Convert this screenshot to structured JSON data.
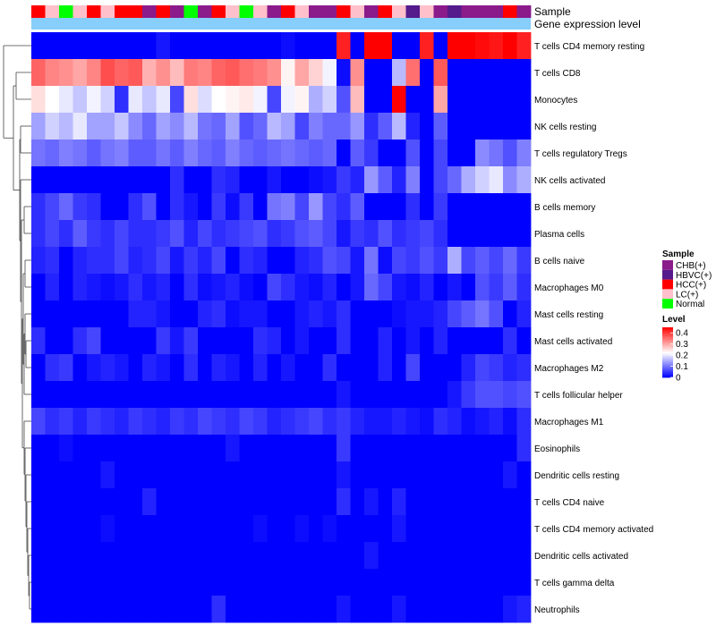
{
  "chart_data": {
    "type": "heatmap",
    "title": "",
    "annotation_labels": [
      "Sample",
      "Gene expression level"
    ],
    "gene_expression_color": "#87cefa",
    "sample_groups": {
      "CHB": "#8b1a8b",
      "HBVC": "#551a8b",
      "HCC": "#ff0000",
      "LC": "#ffc0cb",
      "Normal": "#00ff00"
    },
    "columns": [
      "HCC",
      "LC",
      "Normal",
      "LC",
      "HCC",
      "LC",
      "HCC",
      "HCC",
      "CHB",
      "HCC",
      "CHB",
      "Normal",
      "CHB",
      "HCC",
      "LC",
      "Normal",
      "LC",
      "CHB",
      "HCC",
      "LC",
      "CHB",
      "CHB",
      "HCC",
      "LC",
      "CHB",
      "HCC",
      "LC",
      "HBVC",
      "LC",
      "CHB",
      "HBVC",
      "CHB",
      "CHB",
      "CHB",
      "HCC",
      "CHB"
    ],
    "rows": [
      {
        "name": "T cells CD4 memory resting",
        "values": [
          0,
          0,
          0,
          0,
          0,
          0,
          0,
          0,
          0,
          0.02,
          0,
          0,
          0,
          0,
          0,
          0,
          0,
          0,
          0.01,
          0,
          0,
          0,
          0.42,
          0,
          0.45,
          0.45,
          0,
          0,
          0.42,
          0,
          0.48,
          0.47,
          0.44,
          0.43,
          0.47,
          0.42
        ]
      },
      {
        "name": "T cells CD8",
        "values": [
          0.36,
          0.33,
          0.32,
          0.3,
          0.33,
          0.38,
          0.36,
          0.37,
          0.29,
          0.32,
          0.28,
          0.34,
          0.33,
          0.36,
          0.37,
          0.35,
          0.34,
          0.32,
          0.23,
          0.3,
          0.26,
          0.21,
          0.01,
          0.32,
          0,
          0,
          0.16,
          0.35,
          0,
          0.37,
          0,
          0,
          0,
          0,
          0,
          0
        ]
      },
      {
        "name": "Monocytes",
        "values": [
          0.25,
          0.22,
          0.2,
          0.17,
          0.21,
          0.18,
          0.04,
          0.2,
          0.17,
          0.2,
          0.06,
          0.25,
          0.19,
          0.22,
          0.23,
          0.24,
          0.21,
          0.06,
          0.21,
          0.23,
          0.15,
          0.18,
          0.07,
          0.28,
          0,
          0,
          0.45,
          0,
          0,
          0.3,
          0,
          0,
          0,
          0,
          0,
          0
        ]
      },
      {
        "name": "NK cells resting",
        "values": [
          0.14,
          0.18,
          0.16,
          0.2,
          0.14,
          0.14,
          0.17,
          0.12,
          0.09,
          0.14,
          0.12,
          0.16,
          0.1,
          0.09,
          0.14,
          0.07,
          0.09,
          0.16,
          0.14,
          0.06,
          0.11,
          0.09,
          0.09,
          0.13,
          0.04,
          0.08,
          0.16,
          0.03,
          0,
          0.08,
          0,
          0,
          0,
          0,
          0,
          0
        ]
      },
      {
        "name": "T cells regulatory  Tregs",
        "values": [
          0.1,
          0.09,
          0.11,
          0.1,
          0.08,
          0.1,
          0.11,
          0.08,
          0.08,
          0.1,
          0.08,
          0.11,
          0.09,
          0.08,
          0.11,
          0.09,
          0.08,
          0.09,
          0.1,
          0.09,
          0.08,
          0.09,
          0,
          0.08,
          0.05,
          0,
          0,
          0.07,
          0,
          0.06,
          0,
          0,
          0.12,
          0.1,
          0.07,
          0.11
        ]
      },
      {
        "name": "NK cells activated",
        "values": [
          0,
          0,
          0,
          0,
          0,
          0,
          0,
          0,
          0,
          0,
          0.04,
          0,
          0,
          0.04,
          0.03,
          0,
          0,
          0.02,
          0,
          0,
          0.01,
          0.02,
          0.05,
          0.03,
          0.13,
          0.08,
          0.03,
          0.11,
          0,
          0.06,
          0.09,
          0.15,
          0.18,
          0.2,
          0.12,
          0.15
        ]
      },
      {
        "name": "B cells memory",
        "values": [
          0.04,
          0.06,
          0.09,
          0.05,
          0.04,
          0,
          0,
          0.04,
          0.07,
          0,
          0.04,
          0.02,
          0,
          0.05,
          0.01,
          0.05,
          0,
          0.1,
          0.11,
          0.06,
          0.13,
          0.06,
          0.04,
          0.08,
          0,
          0,
          0,
          0.04,
          0,
          0.05,
          0,
          0,
          0,
          0,
          0,
          0
        ]
      },
      {
        "name": "Plasma cells",
        "values": [
          0.04,
          0.06,
          0.04,
          0.08,
          0.05,
          0.04,
          0.06,
          0.04,
          0.04,
          0.05,
          0.07,
          0.03,
          0.06,
          0.04,
          0.05,
          0.06,
          0.07,
          0.04,
          0.05,
          0.07,
          0.08,
          0.06,
          0.02,
          0.05,
          0.04,
          0.07,
          0.04,
          0.05,
          0.06,
          0.04,
          0,
          0,
          0,
          0,
          0,
          0
        ]
      },
      {
        "name": "B cells naive",
        "values": [
          0.03,
          0.04,
          0,
          0.03,
          0.04,
          0.04,
          0.06,
          0.03,
          0.04,
          0.06,
          0.02,
          0.05,
          0.03,
          0.06,
          0,
          0.04,
          0.03,
          0,
          0,
          0.03,
          0.04,
          0.07,
          0.06,
          0.02,
          0.1,
          0.01,
          0.06,
          0.05,
          0.07,
          0.05,
          0.15,
          0.06,
          0.08,
          0.06,
          0.09,
          0.05
        ]
      },
      {
        "name": "Macrophages M0",
        "values": [
          0,
          0.03,
          0,
          0.03,
          0.02,
          0.01,
          0.02,
          0.04,
          0.02,
          0.03,
          0,
          0.04,
          0.01,
          0.02,
          0.03,
          0.01,
          0,
          0.06,
          0.04,
          0.02,
          0.01,
          0.03,
          0,
          0.02,
          0.09,
          0.06,
          0.02,
          0.01,
          0.03,
          0,
          0.02,
          0,
          0.07,
          0.05,
          0.08,
          0.04
        ]
      },
      {
        "name": "Mast cells resting",
        "values": [
          0,
          0,
          0,
          0,
          0,
          0,
          0,
          0.03,
          0.03,
          0.02,
          0,
          0,
          0.03,
          0.04,
          0.01,
          0.02,
          0.02,
          0,
          0,
          0.02,
          0.03,
          0.02,
          0.04,
          0,
          0,
          0,
          0.01,
          0.02,
          0.02,
          0.03,
          0.06,
          0.08,
          0.1,
          0.07,
          0,
          0.03
        ]
      },
      {
        "name": "Mast cells activated",
        "values": [
          0.04,
          0,
          0,
          0.04,
          0.06,
          0,
          0,
          0,
          0,
          0.05,
          0.02,
          0.05,
          0,
          0,
          0,
          0,
          0.04,
          0.03,
          0,
          0.02,
          0,
          0,
          0.04,
          0,
          0,
          0.03,
          0,
          0.02,
          0,
          0.03,
          0,
          0,
          0,
          0,
          0.04,
          0
        ]
      },
      {
        "name": "Macrophages M2",
        "values": [
          0,
          0.04,
          0.05,
          0,
          0.02,
          0.03,
          0.02,
          0,
          0.03,
          0.02,
          0,
          0.04,
          0,
          0.03,
          0.02,
          0,
          0.03,
          0,
          0.02,
          0,
          0,
          0.04,
          0,
          0,
          0,
          0.03,
          0,
          0.06,
          0,
          0,
          0,
          0.03,
          0.06,
          0.05,
          0.03,
          0.04
        ]
      },
      {
        "name": "T cells follicular helper",
        "values": [
          0,
          0,
          0,
          0,
          0,
          0,
          0,
          0,
          0,
          0,
          0,
          0,
          0,
          0,
          0,
          0,
          0,
          0,
          0,
          0,
          0,
          0,
          0.02,
          0,
          0,
          0,
          0,
          0,
          0,
          0,
          0.02,
          0.05,
          0.07,
          0.07,
          0.06,
          0.07
        ]
      },
      {
        "name": "Macrophages M1",
        "values": [
          0.06,
          0.04,
          0.05,
          0.03,
          0.05,
          0.04,
          0.03,
          0.05,
          0.04,
          0.03,
          0.05,
          0.04,
          0.06,
          0.05,
          0.04,
          0.06,
          0.05,
          0.03,
          0.04,
          0.05,
          0.06,
          0.04,
          0.05,
          0.03,
          0.02,
          0.02,
          0.03,
          0.02,
          0.01,
          0.04,
          0.03,
          0.01,
          0.02,
          0.03,
          0.01,
          0.04
        ]
      },
      {
        "name": "Eosinophils",
        "values": [
          0,
          0,
          0.01,
          0,
          0,
          0,
          0,
          0,
          0,
          0,
          0,
          0,
          0,
          0,
          0.02,
          0,
          0,
          0,
          0,
          0,
          0,
          0,
          0.05,
          0,
          0,
          0,
          0,
          0,
          0,
          0,
          0,
          0,
          0,
          0,
          0,
          0.04
        ]
      },
      {
        "name": "Dendritic cells resting",
        "values": [
          0,
          0,
          0,
          0,
          0,
          0.02,
          0,
          0,
          0,
          0,
          0,
          0,
          0,
          0,
          0,
          0,
          0,
          0,
          0,
          0,
          0,
          0,
          0.02,
          0,
          0,
          0,
          0,
          0,
          0,
          0,
          0,
          0,
          0,
          0,
          0.02,
          0
        ]
      },
      {
        "name": "T cells CD4 naive",
        "values": [
          0,
          0,
          0,
          0,
          0,
          0,
          0,
          0,
          0.03,
          0,
          0,
          0,
          0,
          0,
          0,
          0,
          0,
          0,
          0,
          0,
          0,
          0,
          0.04,
          0,
          0.02,
          0,
          0.03,
          0,
          0,
          0,
          0,
          0,
          0,
          0,
          0,
          0
        ]
      },
      {
        "name": "T cells CD4 memory activated",
        "values": [
          0,
          0,
          0,
          0,
          0,
          0.01,
          0,
          0,
          0,
          0,
          0,
          0,
          0,
          0,
          0,
          0,
          0.01,
          0,
          0,
          0.01,
          0,
          0.01,
          0,
          0,
          0,
          0,
          0.02,
          0,
          0,
          0,
          0,
          0,
          0,
          0,
          0,
          0
        ]
      },
      {
        "name": "Dendritic cells activated",
        "values": [
          0,
          0,
          0,
          0,
          0,
          0,
          0,
          0,
          0,
          0,
          0,
          0,
          0,
          0,
          0,
          0,
          0,
          0,
          0,
          0,
          0,
          0,
          0,
          0,
          0.02,
          0,
          0,
          0,
          0,
          0,
          0,
          0,
          0,
          0,
          0,
          0
        ]
      },
      {
        "name": "T cells gamma delta",
        "values": [
          0,
          0,
          0,
          0,
          0,
          0,
          0,
          0,
          0,
          0,
          0,
          0,
          0,
          0,
          0,
          0,
          0,
          0,
          0,
          0,
          0,
          0,
          0,
          0,
          0,
          0,
          0,
          0,
          0,
          0,
          0,
          0,
          0,
          0,
          0,
          0
        ]
      },
      {
        "name": "Neutrophils",
        "values": [
          0,
          0,
          0,
          0,
          0,
          0,
          0,
          0,
          0,
          0,
          0,
          0,
          0,
          0.04,
          0,
          0,
          0,
          0,
          0,
          0,
          0,
          0,
          0.02,
          0,
          0,
          0,
          0.02,
          0,
          0,
          0,
          0,
          0,
          0,
          0,
          0.02,
          0.03
        ]
      }
    ],
    "legend": {
      "sample_title": "Sample",
      "sample_entries": [
        {
          "label": "CHB(+)",
          "group": "CHB"
        },
        {
          "label": "HBVC(+)",
          "group": "HBVC"
        },
        {
          "label": "HCC(+)",
          "group": "HCC"
        },
        {
          "label": "LC(+)",
          "group": "LC"
        },
        {
          "label": "Normal",
          "group": "Normal"
        }
      ],
      "level_title": "Level",
      "level_ticks": [
        "0.4",
        "0.3",
        "0.2",
        "0.1",
        "0"
      ],
      "level_range": [
        0,
        0.45
      ]
    },
    "color_scale": {
      "low": "#0000ff",
      "mid": "#ffffff",
      "high": "#ff0000",
      "mid_value": 0.22,
      "max_value": 0.45
    }
  }
}
